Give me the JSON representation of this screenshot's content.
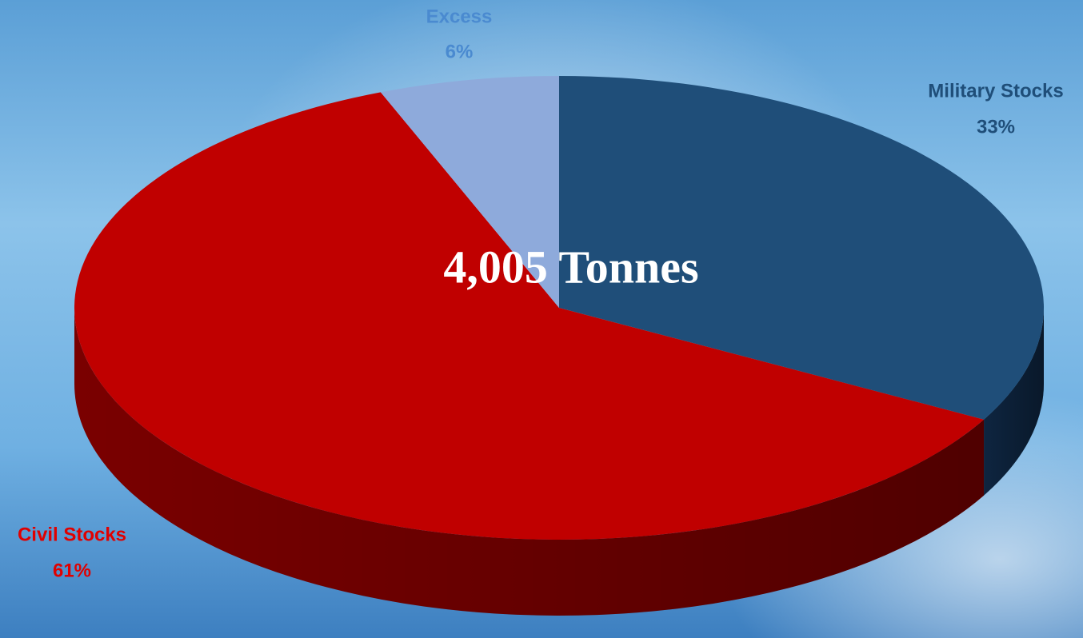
{
  "chart_data": {
    "type": "pie",
    "annotation": "4,005 Tonnes",
    "categories": [
      "Military Stocks",
      "Civil Stocks",
      "Excess"
    ],
    "values": [
      33,
      61,
      6
    ],
    "value_labels": [
      "33%",
      "61%",
      "6%"
    ],
    "colors": [
      "#1f4e79",
      "#c00000",
      "#8eaadb"
    ],
    "side_colors": [
      "#0e2540",
      "#7a0000",
      "#5a74a8"
    ],
    "label_colors": [
      "#1f4e79",
      "#e00000",
      "#4a8ad0"
    ]
  }
}
